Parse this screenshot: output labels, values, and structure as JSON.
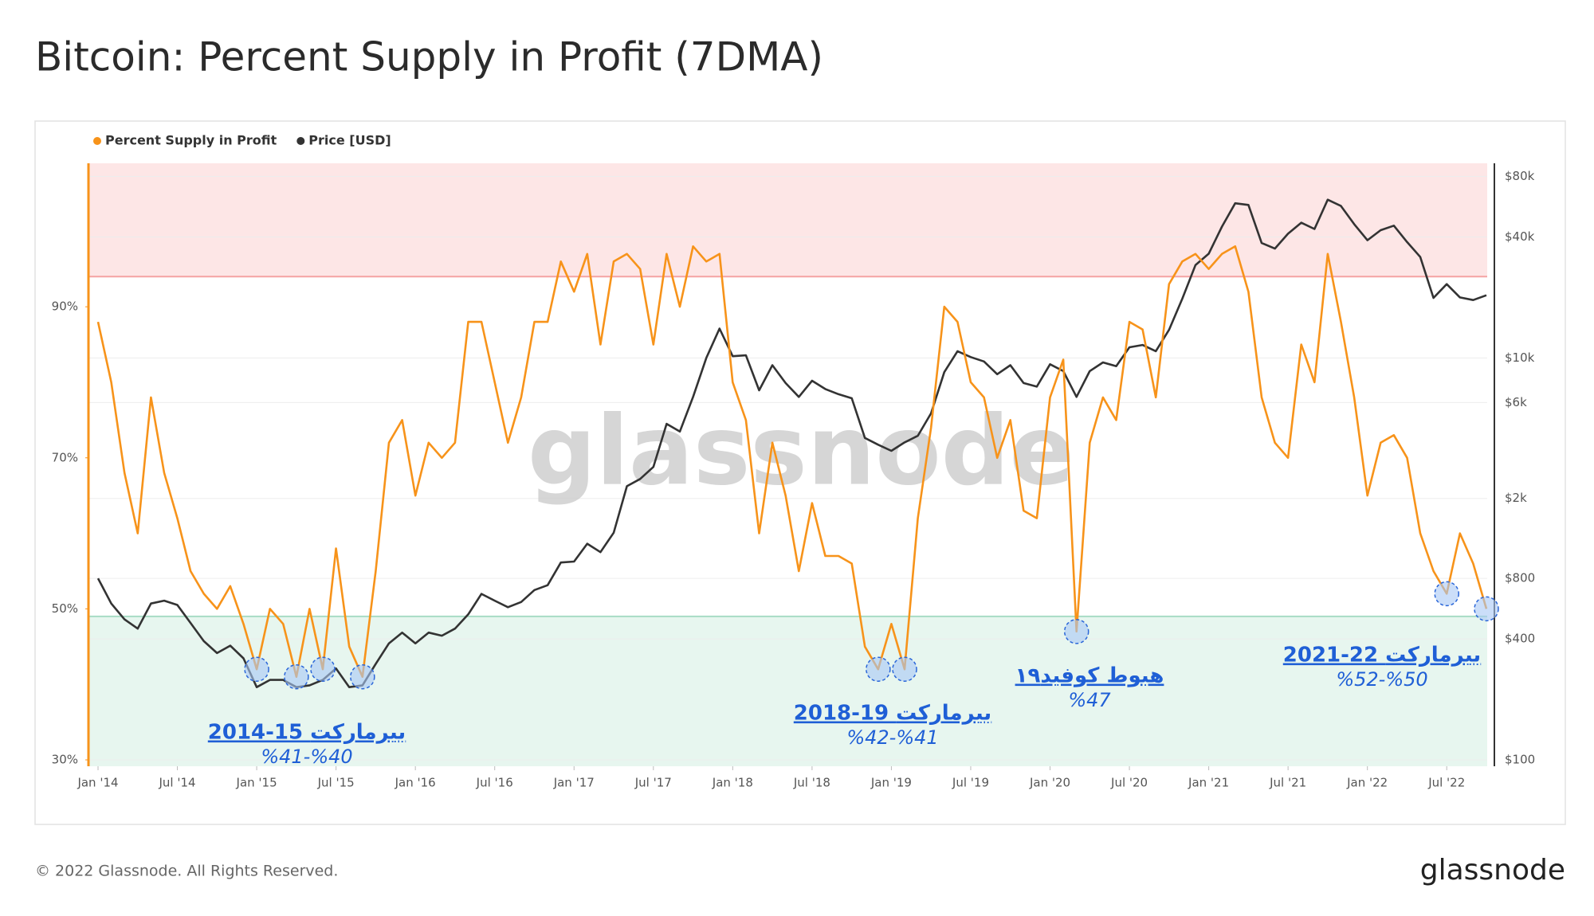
{
  "chart_data": {
    "type": "line",
    "title": "Bitcoin: Percent Supply in Profit (7DMA)",
    "watermark": "glassnode",
    "footer": "© 2022 Glassnode. All Rights Reserved.",
    "brand": "glassnode",
    "x": [
      "2014-01",
      "2014-02",
      "2014-03",
      "2014-04",
      "2014-05",
      "2014-06",
      "2014-07",
      "2014-08",
      "2014-09",
      "2014-10",
      "2014-11",
      "2014-12",
      "2015-01",
      "2015-02",
      "2015-03",
      "2015-04",
      "2015-05",
      "2015-06",
      "2015-07",
      "2015-08",
      "2015-09",
      "2015-10",
      "2015-11",
      "2015-12",
      "2016-01",
      "2016-02",
      "2016-03",
      "2016-04",
      "2016-05",
      "2016-06",
      "2016-07",
      "2016-08",
      "2016-09",
      "2016-10",
      "2016-11",
      "2016-12",
      "2017-01",
      "2017-02",
      "2017-03",
      "2017-04",
      "2017-05",
      "2017-06",
      "2017-07",
      "2017-08",
      "2017-09",
      "2017-10",
      "2017-11",
      "2017-12",
      "2018-01",
      "2018-02",
      "2018-03",
      "2018-04",
      "2018-05",
      "2018-06",
      "2018-07",
      "2018-08",
      "2018-09",
      "2018-10",
      "2018-11",
      "2018-12",
      "2019-01",
      "2019-02",
      "2019-03",
      "2019-04",
      "2019-05",
      "2019-06",
      "2019-07",
      "2019-08",
      "2019-09",
      "2019-10",
      "2019-11",
      "2019-12",
      "2020-01",
      "2020-02",
      "2020-03",
      "2020-04",
      "2020-05",
      "2020-06",
      "2020-07",
      "2020-08",
      "2020-09",
      "2020-10",
      "2020-11",
      "2020-12",
      "2021-01",
      "2021-02",
      "2021-03",
      "2021-04",
      "2021-05",
      "2021-06",
      "2021-07",
      "2021-08",
      "2021-09",
      "2021-10",
      "2021-11",
      "2021-12",
      "2022-01",
      "2022-02",
      "2022-03",
      "2022-04",
      "2022-05",
      "2022-06",
      "2022-07",
      "2022-08",
      "2022-09",
      "2022-10"
    ],
    "series": [
      {
        "name": "Percent Supply in Profit",
        "color": "#f7931a",
        "axis": "y",
        "values": [
          88,
          80,
          68,
          60,
          78,
          68,
          62,
          55,
          52,
          50,
          53,
          48,
          42,
          50,
          48,
          41,
          50,
          42,
          58,
          45,
          41,
          55,
          72,
          75,
          65,
          72,
          70,
          72,
          88,
          88,
          80,
          72,
          78,
          88,
          88,
          96,
          92,
          97,
          85,
          96,
          97,
          95,
          85,
          97,
          90,
          98,
          96,
          97,
          80,
          75,
          60,
          72,
          65,
          55,
          64,
          57,
          57,
          56,
          45,
          42,
          48,
          42,
          62,
          74,
          90,
          88,
          80,
          78,
          70,
          75,
          63,
          62,
          78,
          83,
          47,
          72,
          78,
          75,
          88,
          87,
          78,
          93,
          96,
          97,
          95,
          97,
          98,
          92,
          78,
          72,
          70,
          85,
          80,
          97,
          88,
          78,
          65,
          72,
          73,
          70,
          60,
          55,
          52,
          60,
          56,
          50
        ]
      },
      {
        "name": "Price [USD]",
        "color": "#333333",
        "axis": "y2",
        "values": [
          800,
          600,
          500,
          450,
          600,
          620,
          590,
          480,
          390,
          340,
          370,
          320,
          230,
          250,
          250,
          230,
          235,
          250,
          285,
          230,
          235,
          300,
          380,
          430,
          380,
          430,
          415,
          450,
          530,
          670,
          620,
          575,
          610,
          700,
          740,
          960,
          970,
          1190,
          1080,
          1350,
          2300,
          2500,
          2870,
          4700,
          4300,
          6400,
          10000,
          14000,
          10200,
          10300,
          6900,
          9200,
          7500,
          6400,
          7700,
          7000,
          6600,
          6300,
          4000,
          3700,
          3450,
          3800,
          4100,
          5300,
          8500,
          10800,
          10100,
          9600,
          8300,
          9200,
          7500,
          7200,
          9300,
          8600,
          6400,
          8600,
          9500,
          9100,
          11300,
          11600,
          10800,
          13800,
          19700,
          29000,
          33000,
          45000,
          58800,
          57700,
          37300,
          35000,
          41500,
          47100,
          43800,
          61300,
          57000,
          46300,
          38500,
          43200,
          45500,
          37700,
          31800,
          19900,
          23300,
          20000,
          19400,
          20500
        ]
      }
    ],
    "xlim": [
      "2014-01",
      "2022-10"
    ],
    "xticks": [
      {
        "value": "2014-01",
        "label": "Jan '14"
      },
      {
        "value": "2014-07",
        "label": "Jul '14"
      },
      {
        "value": "2015-01",
        "label": "Jan '15"
      },
      {
        "value": "2015-07",
        "label": "Jul '15"
      },
      {
        "value": "2016-01",
        "label": "Jan '16"
      },
      {
        "value": "2016-07",
        "label": "Jul '16"
      },
      {
        "value": "2017-01",
        "label": "Jan '17"
      },
      {
        "value": "2017-07",
        "label": "Jul '17"
      },
      {
        "value": "2018-01",
        "label": "Jan '18"
      },
      {
        "value": "2018-07",
        "label": "Jul '18"
      },
      {
        "value": "2019-01",
        "label": "Jan '19"
      },
      {
        "value": "2019-07",
        "label": "Jul '19"
      },
      {
        "value": "2020-01",
        "label": "Jan '20"
      },
      {
        "value": "2020-07",
        "label": "Jul '20"
      },
      {
        "value": "2021-01",
        "label": "Jan '21"
      },
      {
        "value": "2021-07",
        "label": "Jul '21"
      },
      {
        "value": "2022-01",
        "label": "Jan '22"
      },
      {
        "value": "2022-07",
        "label": "Jul '22"
      }
    ],
    "ylim": [
      30,
      109
    ],
    "yticks": [
      {
        "value": 30,
        "label": "30%"
      },
      {
        "value": 50,
        "label": "50%"
      },
      {
        "value": 70,
        "label": "70%"
      },
      {
        "value": 90,
        "label": "90%"
      }
    ],
    "y2lim": [
      100,
      93000
    ],
    "y2log": true,
    "y2ticks": [
      {
        "value": 100,
        "label": "$100"
      },
      {
        "value": 400,
        "label": "$400"
      },
      {
        "value": 800,
        "label": "$800"
      },
      {
        "value": 2000,
        "label": "$2k"
      },
      {
        "value": 6000,
        "label": "$6k"
      },
      {
        "value": 10000,
        "label": "$10k"
      },
      {
        "value": 40000,
        "label": "$40k"
      },
      {
        "value": 80000,
        "label": "$80k"
      }
    ],
    "grid": true,
    "legend": "top-left",
    "bands": [
      {
        "from": 94,
        "to": 109,
        "color": "#fde6e6",
        "edge": "#f5a3a3"
      },
      {
        "from": 30,
        "to": 49,
        "color": "#e7f6ef",
        "edge": "#a8dcc4"
      }
    ],
    "annotations": [
      {
        "title": "2014-15 بیرمارکت",
        "text": "%41-%40"
      },
      {
        "title": "2018-19 بیرمارکت",
        "text": "%42-%41"
      },
      {
        "title": "هبوط کوفید۱۹",
        "text": "%47"
      },
      {
        "title": "2021-22 بیرمارکت",
        "text": "%52-%50"
      }
    ]
  }
}
